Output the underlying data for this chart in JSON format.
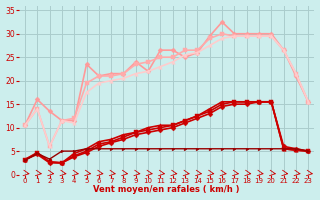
{
  "xlabel": "Vent moyen/en rafales ( km/h )",
  "xlim": [
    -0.5,
    23.5
  ],
  "ylim": [
    0,
    36
  ],
  "xticks": [
    0,
    1,
    2,
    3,
    4,
    5,
    6,
    7,
    8,
    9,
    10,
    11,
    12,
    13,
    14,
    15,
    16,
    17,
    18,
    19,
    20,
    21,
    22,
    23
  ],
  "yticks": [
    0,
    5,
    10,
    15,
    20,
    25,
    30,
    35
  ],
  "bg_color": "#cceeed",
  "grid_color": "#aacccc",
  "series": [
    {
      "x": [
        0,
        1,
        2,
        3,
        4,
        5,
        6,
        7,
        8,
        9,
        10,
        11,
        12,
        13,
        14,
        15,
        16,
        17,
        18,
        19,
        20,
        21,
        22,
        23
      ],
      "y": [
        3.2,
        4.7,
        2.7,
        2.5,
        4.5,
        5.5,
        7.0,
        7.5,
        8.5,
        9.0,
        10.0,
        10.5,
        10.5,
        11.5,
        12.5,
        14.0,
        15.5,
        15.5,
        15.5,
        15.5,
        15.5,
        5.5,
        5.2,
        5.0
      ],
      "color": "#cc0000",
      "marker": "^",
      "linewidth": 1.2,
      "markersize": 2.5
    },
    {
      "x": [
        0,
        1,
        2,
        3,
        4,
        5,
        6,
        7,
        8,
        9,
        10,
        11,
        12,
        13,
        14,
        15,
        16,
        17,
        18,
        19,
        20,
        21,
        22,
        23
      ],
      "y": [
        3.2,
        4.5,
        2.7,
        2.5,
        4.0,
        5.0,
        6.5,
        7.0,
        8.0,
        9.0,
        9.5,
        10.0,
        10.5,
        11.5,
        12.5,
        13.5,
        15.0,
        15.5,
        15.5,
        15.5,
        15.5,
        5.5,
        5.2,
        5.0
      ],
      "color": "#cc0000",
      "marker": "s",
      "linewidth": 1.2,
      "markersize": 2.5
    },
    {
      "x": [
        0,
        1,
        2,
        3,
        4,
        5,
        6,
        7,
        8,
        9,
        10,
        11,
        12,
        13,
        14,
        15,
        16,
        17,
        18,
        19,
        20,
        21,
        22,
        23
      ],
      "y": [
        3.2,
        4.3,
        2.5,
        2.5,
        3.8,
        4.7,
        6.0,
        6.8,
        7.5,
        8.5,
        9.0,
        9.5,
        10.0,
        11.0,
        12.0,
        13.0,
        14.5,
        15.0,
        15.0,
        15.5,
        15.5,
        6.0,
        5.5,
        5.0
      ],
      "color": "#cc0000",
      "marker": "D",
      "linewidth": 1.2,
      "markersize": 2.5
    },
    {
      "x": [
        0,
        1,
        2,
        3,
        4,
        5,
        6,
        7,
        8,
        9,
        10,
        11,
        12,
        13,
        14,
        15,
        16,
        17,
        18,
        19,
        20,
        21,
        22,
        23
      ],
      "y": [
        3.0,
        4.5,
        3.3,
        5.0,
        5.0,
        5.5,
        5.5,
        5.5,
        5.5,
        5.5,
        5.5,
        5.5,
        5.5,
        5.5,
        5.5,
        5.5,
        5.5,
        5.5,
        5.5,
        5.5,
        5.5,
        5.5,
        5.5,
        5.0
      ],
      "color": "#990000",
      "marker": ">",
      "linewidth": 1.0,
      "markersize": 2.0
    },
    {
      "x": [
        0,
        1,
        2,
        3,
        4,
        5,
        6,
        7,
        8,
        9,
        10,
        11,
        12,
        13,
        14,
        15,
        16,
        17,
        18,
        19,
        20,
        21,
        22,
        23
      ],
      "y": [
        10.5,
        16.0,
        13.5,
        11.5,
        11.5,
        23.5,
        21.0,
        21.5,
        21.5,
        24.0,
        22.0,
        26.5,
        26.5,
        25.0,
        26.0,
        29.5,
        32.5,
        30.0,
        30.0,
        30.0,
        30.0,
        26.5,
        21.0,
        15.5
      ],
      "color": "#ff9999",
      "marker": "D",
      "linewidth": 1.2,
      "markersize": 2.5
    },
    {
      "x": [
        0,
        1,
        2,
        3,
        4,
        5,
        6,
        7,
        8,
        9,
        10,
        11,
        12,
        13,
        14,
        15,
        16,
        17,
        18,
        19,
        20,
        21,
        22,
        23
      ],
      "y": [
        10.5,
        14.0,
        6.0,
        11.5,
        12.0,
        19.5,
        21.0,
        21.0,
        21.5,
        23.5,
        24.0,
        25.0,
        25.0,
        26.5,
        26.5,
        29.0,
        30.0,
        29.5,
        29.5,
        29.5,
        29.5,
        26.5,
        21.5,
        15.5
      ],
      "color": "#ffaaaa",
      "marker": "s",
      "linewidth": 1.2,
      "markersize": 2.5
    },
    {
      "x": [
        0,
        1,
        2,
        3,
        4,
        5,
        6,
        7,
        8,
        9,
        10,
        11,
        12,
        13,
        14,
        15,
        16,
        17,
        18,
        19,
        20,
        21,
        22,
        23
      ],
      "y": [
        10.5,
        14.0,
        6.0,
        11.5,
        11.0,
        17.5,
        19.5,
        20.0,
        20.5,
        21.5,
        22.0,
        23.0,
        24.0,
        25.5,
        26.0,
        27.5,
        29.0,
        29.5,
        29.5,
        29.5,
        29.5,
        26.5,
        21.5,
        15.5
      ],
      "color": "#ffcccc",
      "marker": "^",
      "linewidth": 1.2,
      "markersize": 2.5
    }
  ],
  "arrow_color": "#cc0000",
  "xlabel_color": "#cc0000",
  "tick_color": "#cc0000"
}
